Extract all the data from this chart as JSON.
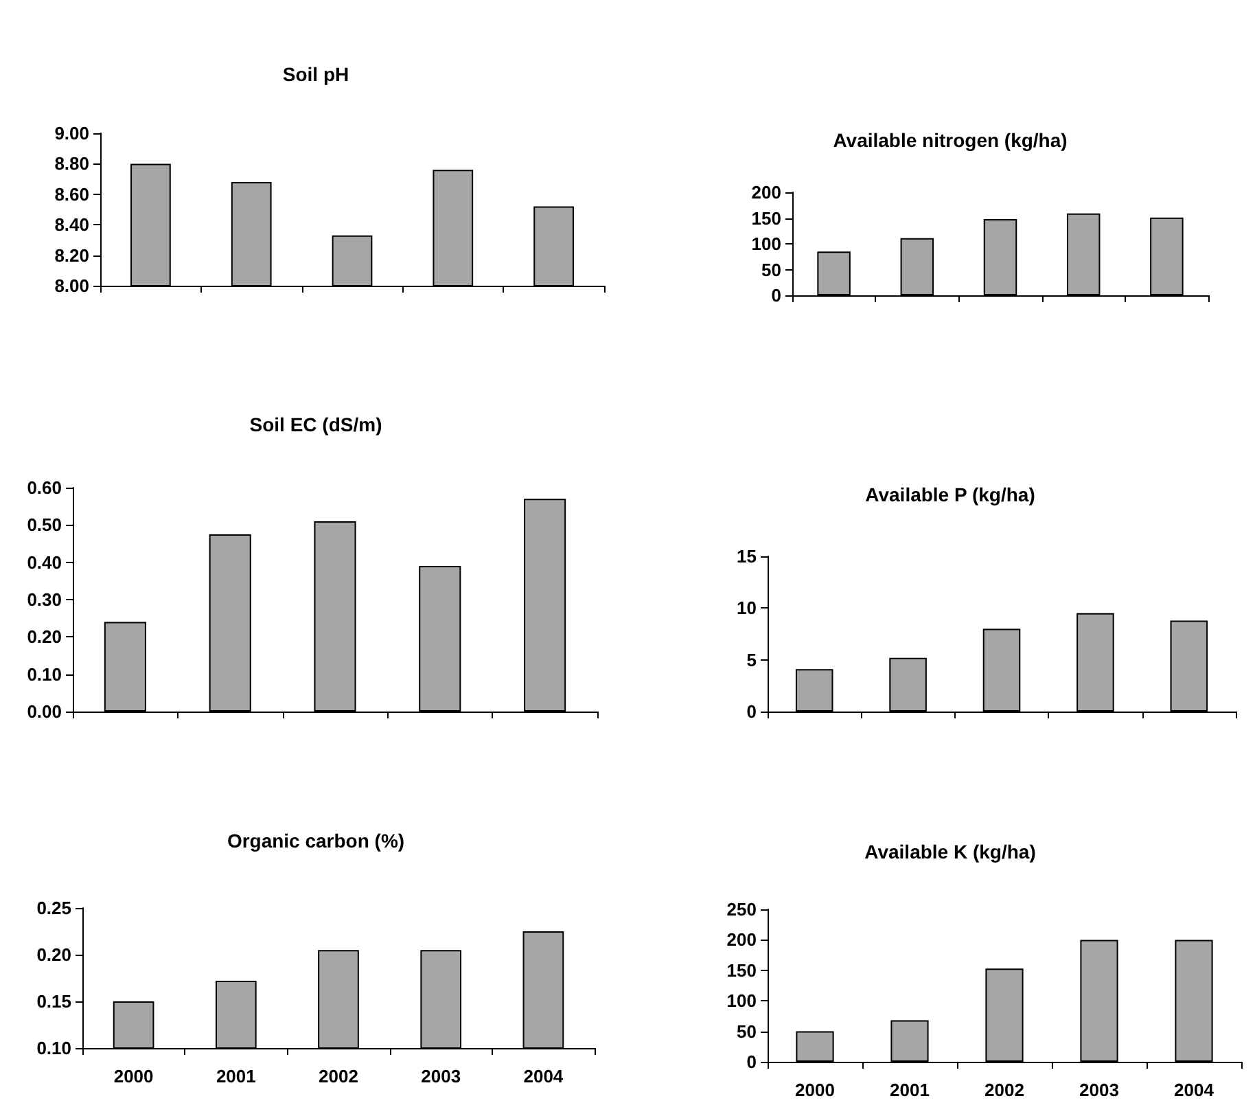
{
  "chart_data": [
    {
      "type": "bar",
      "title": "Soil pH",
      "categories": [
        null,
        null,
        null,
        null,
        null
      ],
      "values": [
        8.8,
        8.68,
        8.33,
        8.76,
        8.52
      ],
      "color": "#a6a6a6",
      "ylim": [
        8,
        9
      ],
      "yticks": [
        {
          "value": 8,
          "label": "8.00"
        },
        {
          "value": 8.2,
          "label": "8.20"
        },
        {
          "value": 8.4,
          "label": "8.40"
        },
        {
          "value": 8.6,
          "label": "8.60"
        },
        {
          "value": 8.8,
          "label": "8.80"
        },
        {
          "value": 9,
          "label": "9.00"
        }
      ],
      "tick_labels": "y"
    },
    {
      "type": "bar",
      "title": "Available nitrogen (kg/ha)",
      "categories": [
        null,
        null,
        null,
        null,
        null
      ],
      "values": [
        85,
        111,
        148,
        159,
        151
      ],
      "color": "#a6a6a6",
      "ylim": [
        0,
        200
      ],
      "yticks": [
        0,
        50,
        100,
        150,
        200
      ],
      "tick_labels": "y"
    },
    {
      "type": "bar",
      "title": "Soil EC (dS/m)",
      "categories": [
        null,
        null,
        null,
        null,
        null
      ],
      "values": [
        0.24,
        0.475,
        0.51,
        0.39,
        0.57
      ],
      "color": "#a6a6a6",
      "ylim": [
        0,
        0.6
      ],
      "yticks": [
        {
          "value": 0,
          "label": "0.00"
        },
        {
          "value": 0.1,
          "label": "0.10"
        },
        {
          "value": 0.2,
          "label": "0.20"
        },
        {
          "value": 0.3,
          "label": "0.30"
        },
        {
          "value": 0.4,
          "label": "0.40"
        },
        {
          "value": 0.5,
          "label": "0.50"
        },
        {
          "value": 0.6,
          "label": "0.60"
        }
      ],
      "tick_labels": "y"
    },
    {
      "type": "bar",
      "title": "Available P (kg/ha)",
      "categories": [
        null,
        null,
        null,
        null,
        null
      ],
      "values": [
        4.1,
        5.2,
        8.0,
        9.5,
        8.8
      ],
      "color": "#a6a6a6",
      "ylim": [
        0,
        15
      ],
      "yticks": [
        0,
        5,
        10,
        15
      ],
      "tick_labels": "y"
    },
    {
      "type": "bar",
      "title": "Organic carbon (%)",
      "categories": [
        "2000",
        "2001",
        "2002",
        "2003",
        "2004"
      ],
      "values": [
        0.15,
        0.172,
        0.205,
        0.205,
        0.225
      ],
      "color": "#a6a6a6",
      "ylim": [
        0.1,
        0.25
      ],
      "yticks": [
        {
          "value": 0.1,
          "label": "0.10"
        },
        {
          "value": 0.15,
          "label": "0.15"
        },
        {
          "value": 0.2,
          "label": "0.20"
        },
        {
          "value": 0.25,
          "label": "0.25"
        }
      ]
    },
    {
      "type": "bar",
      "title": "Available K (kg/ha)",
      "categories": [
        "2000",
        "2001",
        "2002",
        "2003",
        "2004"
      ],
      "values": [
        50,
        68,
        153,
        200,
        200
      ],
      "color": "#a6a6a6",
      "ylim": [
        0,
        250
      ],
      "yticks": [
        0,
        50,
        100,
        150,
        200,
        250
      ]
    }
  ]
}
